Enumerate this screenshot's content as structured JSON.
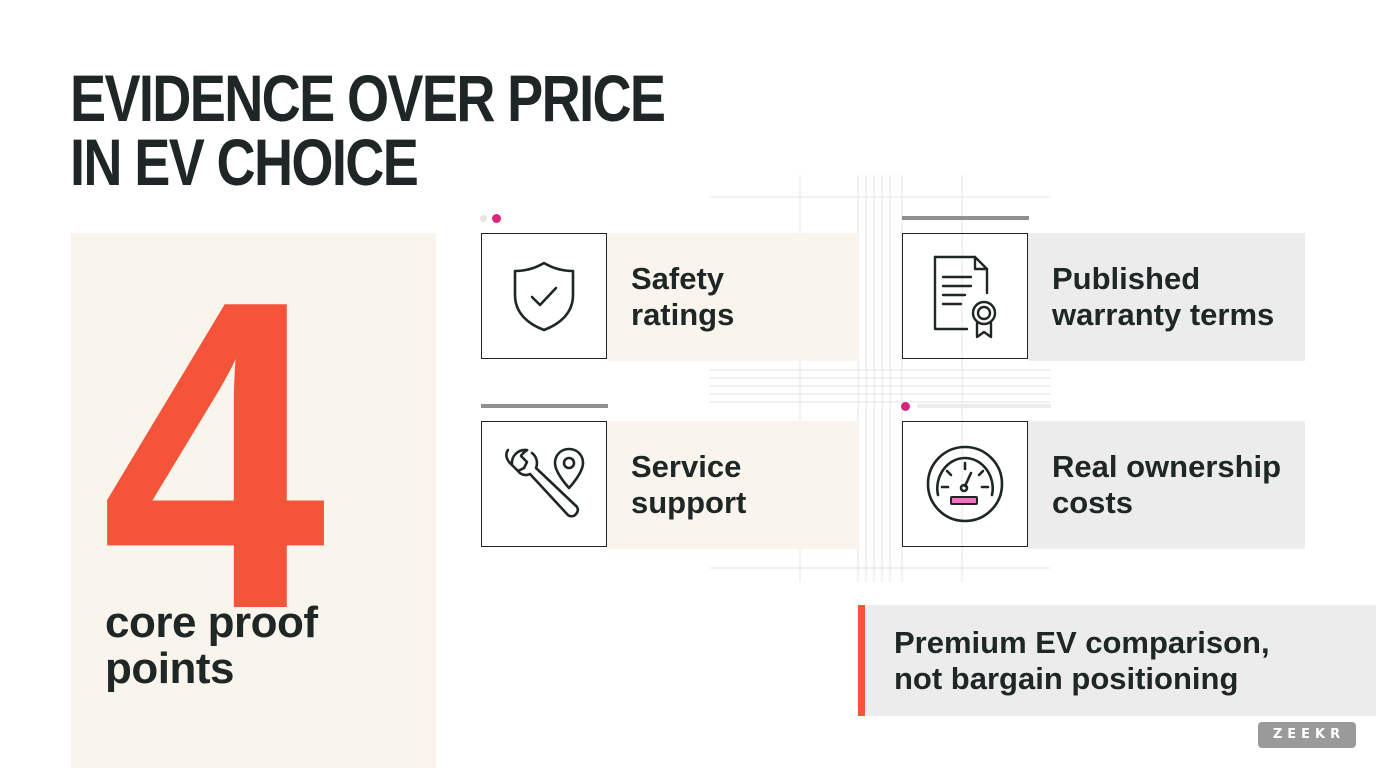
{
  "title": {
    "line1": "EVIDENCE OVER PRICE",
    "line2": "IN EV CHOICE"
  },
  "stat": {
    "value": "4",
    "label": "core proof points"
  },
  "proof_points": [
    {
      "label_line1": "Safety",
      "label_line2": "ratings",
      "icon": "shield-check-icon"
    },
    {
      "label_line1": "Published",
      "label_line2": "warranty terms",
      "icon": "certificate-document-icon"
    },
    {
      "label_line1": "Service",
      "label_line2": "support",
      "icon": "wrench-location-icon"
    },
    {
      "label_line1": "Real ownership",
      "label_line2": "costs",
      "icon": "speedometer-gauge-icon"
    }
  ],
  "callout": {
    "line1": "Premium EV comparison,",
    "line2": "not bargain positioning"
  },
  "brand": {
    "logo_text": "ZEEKR"
  },
  "colors": {
    "accent": "#f4553a",
    "magenta": "#d8267f",
    "ink": "#1e2626",
    "cream": "#faf5ec",
    "gray_panel": "#ececec"
  }
}
